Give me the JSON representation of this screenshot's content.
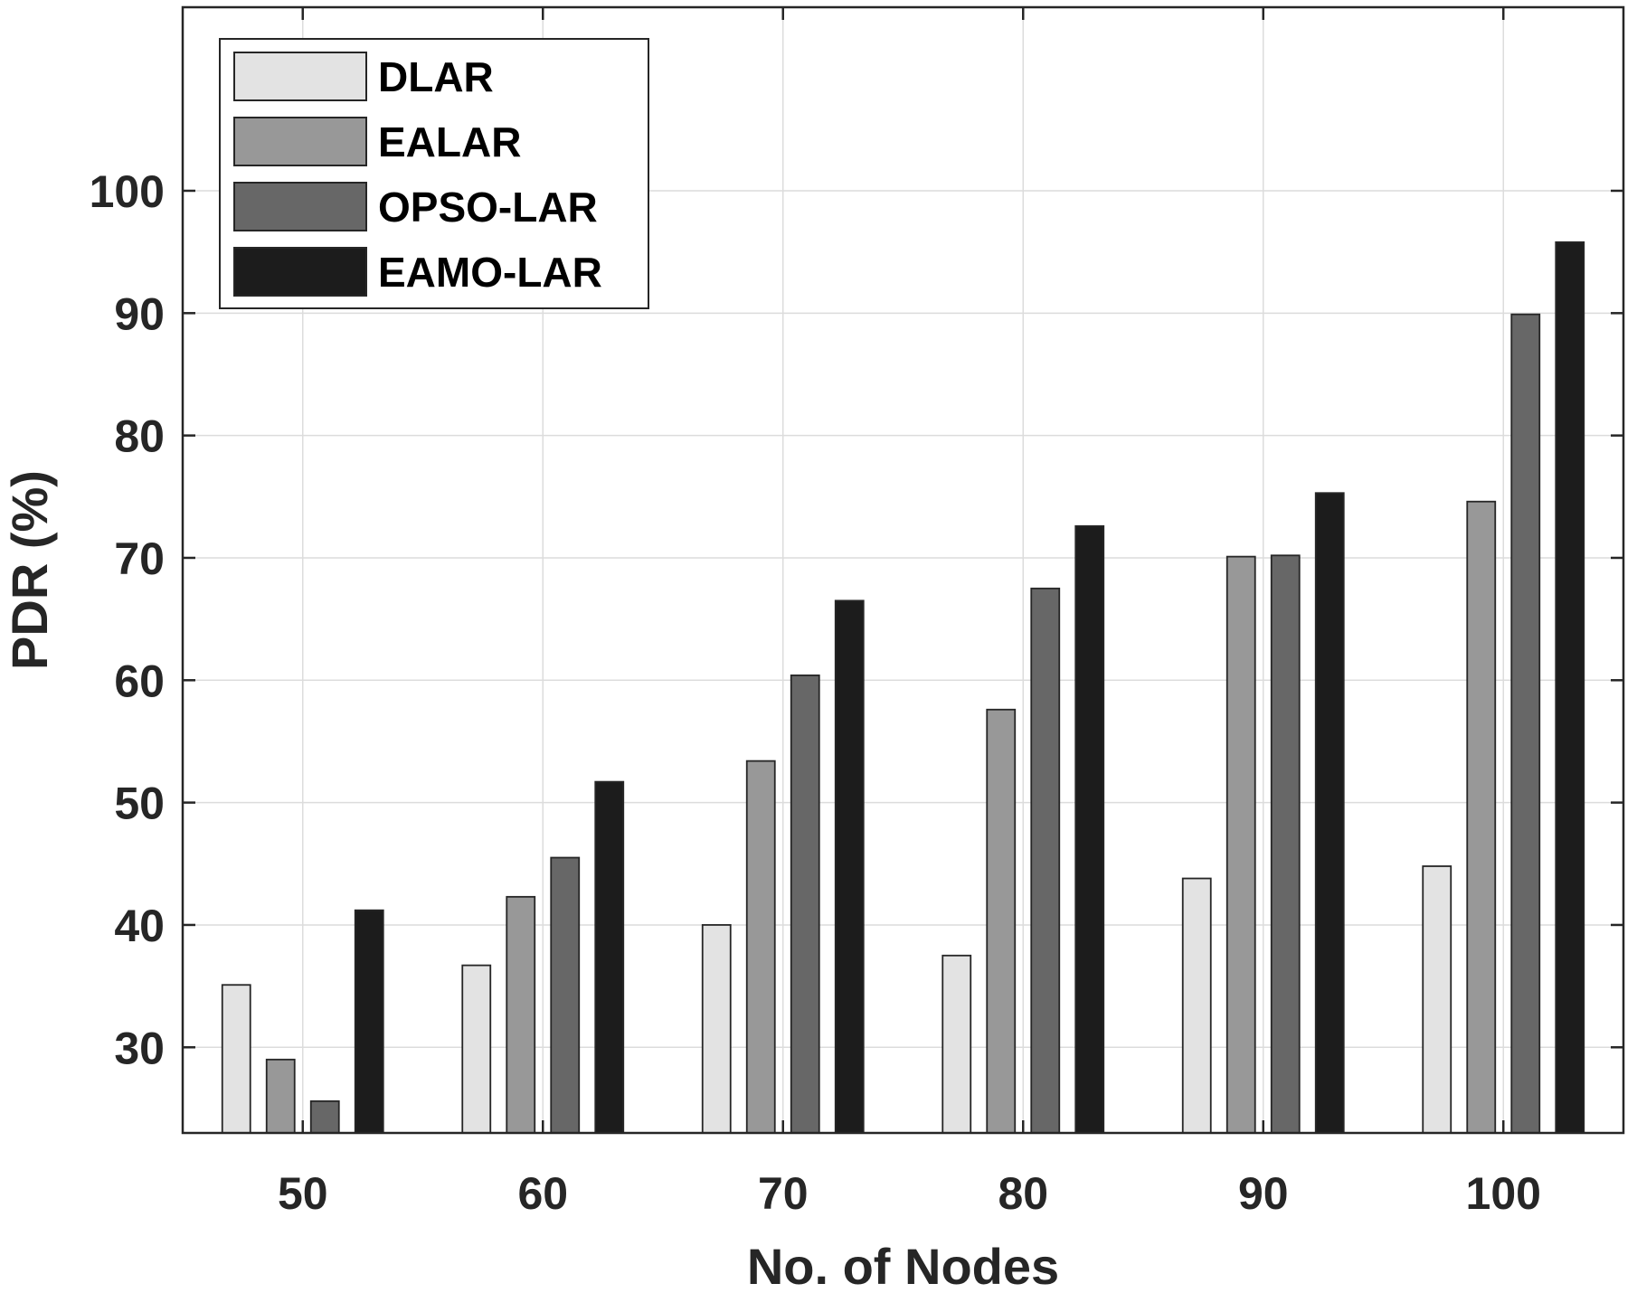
{
  "chart_data": {
    "type": "bar",
    "title": "",
    "xlabel": "No. of Nodes",
    "ylabel": "PDR (%)",
    "categories": [
      "50",
      "60",
      "70",
      "80",
      "90",
      "100"
    ],
    "ylim": [
      23,
      115
    ],
    "yticks": [
      30,
      40,
      50,
      60,
      70,
      80,
      90,
      100
    ],
    "grid": true,
    "legend_position": "top-left",
    "series": [
      {
        "name": "DLAR",
        "color": "#e3e3e3",
        "values": [
          35.1,
          36.7,
          40.0,
          37.5,
          43.8,
          44.8
        ]
      },
      {
        "name": "EALAR",
        "color": "#989898",
        "values": [
          29.0,
          42.3,
          53.4,
          57.6,
          70.1,
          74.6
        ]
      },
      {
        "name": "OPSO-LAR",
        "color": "#676767",
        "values": [
          25.6,
          45.5,
          60.4,
          67.5,
          70.2,
          89.9
        ]
      },
      {
        "name": "EAMO-LAR",
        "color": "#1c1c1c",
        "values": [
          41.2,
          51.7,
          66.5,
          72.6,
          75.3,
          95.8
        ]
      }
    ]
  }
}
